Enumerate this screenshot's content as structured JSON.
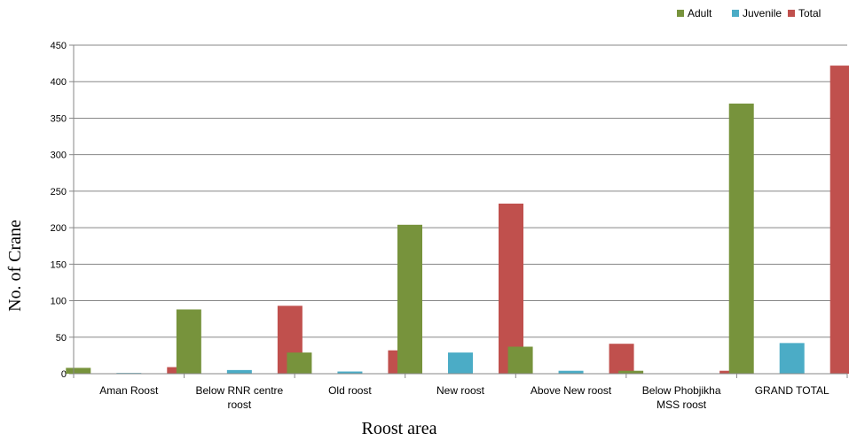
{
  "chart_data": {
    "type": "bar",
    "title": "",
    "xlabel": "Roost area",
    "ylabel": "No. of Crane",
    "ylim": [
      0,
      450
    ],
    "yticks": [
      0,
      50,
      100,
      150,
      200,
      250,
      300,
      350,
      400,
      450
    ],
    "grid": true,
    "legend_position": "top-right",
    "categories": [
      [
        "Aman Roost"
      ],
      [
        "Below RNR centre",
        "roost"
      ],
      [
        "Old roost"
      ],
      [
        "New roost"
      ],
      [
        "Above New roost"
      ],
      [
        "Below Phobjikha",
        "MSS roost"
      ],
      [
        "GRAND TOTAL"
      ]
    ],
    "series": [
      {
        "name": "Adult",
        "color": "#77933c",
        "values": [
          8,
          88,
          29,
          204,
          37,
          4,
          370
        ]
      },
      {
        "name": "Juvenile",
        "color": "#4bacc6",
        "values": [
          1,
          5,
          3,
          29,
          4,
          0,
          42
        ]
      },
      {
        "name": "Total",
        "color": "#c0504d",
        "values": [
          9,
          93,
          32,
          233,
          41,
          4,
          422
        ]
      }
    ]
  }
}
